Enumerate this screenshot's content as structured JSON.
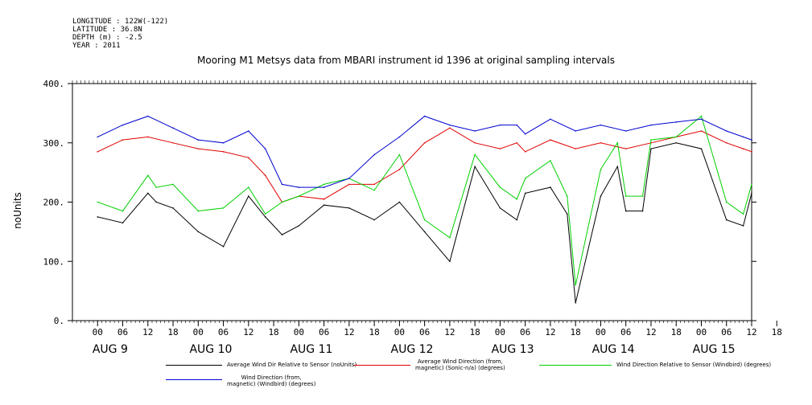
{
  "meta": {
    "lines": [
      "LONGITUDE : 122W(-122)",
      "LATITUDE : 36.8N",
      "DEPTH (m) : -2.5",
      "YEAR : 2011"
    ]
  },
  "chart_data": {
    "type": "line",
    "title": "Mooring M1 Metsys data from MBARI instrument id 1396 at original sampling intervals",
    "ylabel": "noUnits",
    "ylim": [
      0,
      400
    ],
    "yticks": [
      "0.",
      "100.",
      "200.",
      "300.",
      "400."
    ],
    "xlim_hours": [
      -6,
      156
    ],
    "hour_ticks": [
      "00",
      "06",
      "12",
      "18",
      "00",
      "06",
      "12",
      "18",
      "00",
      "06",
      "12",
      "18",
      "00",
      "06",
      "12",
      "18",
      "00",
      "06",
      "12",
      "18",
      "00",
      "06",
      "12",
      "18",
      "00",
      "06",
      "12",
      "18"
    ],
    "day_labels": [
      "AUG  9",
      "AUG 10",
      "AUG 11",
      "AUG 12",
      "AUG 13",
      "AUG 14",
      "AUG 15"
    ],
    "series": [
      {
        "name": "Average Wind Dir Relative to Sensor (noUnits)",
        "color": "#000000",
        "x": [
          0,
          6,
          12,
          14,
          18,
          24,
          30,
          36,
          40,
          44,
          48,
          54,
          60,
          66,
          72,
          78,
          84,
          90,
          96,
          100,
          102,
          108,
          112,
          114,
          120,
          124,
          126,
          130,
          132,
          138,
          144,
          150,
          154,
          156
        ],
        "y": [
          175,
          165,
          215,
          200,
          190,
          150,
          125,
          210,
          175,
          145,
          160,
          195,
          190,
          170,
          200,
          150,
          100,
          260,
          190,
          170,
          215,
          225,
          180,
          30,
          210,
          260,
          185,
          185,
          290,
          300,
          290,
          170,
          160,
          215
        ]
      },
      {
        "name": "Average Wind Direction (from, magnetic) (Sonic-n/a) (degrees)",
        "color": "#e00000",
        "x": [
          0,
          6,
          12,
          18,
          24,
          30,
          36,
          40,
          44,
          48,
          54,
          60,
          66,
          72,
          78,
          84,
          90,
          96,
          100,
          102,
          108,
          114,
          120,
          126,
          132,
          138,
          144,
          150,
          154,
          156
        ],
        "y": [
          285,
          305,
          310,
          300,
          290,
          285,
          275,
          245,
          200,
          210,
          205,
          230,
          230,
          255,
          300,
          325,
          300,
          290,
          300,
          285,
          305,
          290,
          300,
          290,
          300,
          310,
          320,
          300,
          290,
          285
        ]
      },
      {
        "name": "Wind Direction Relative to Sensor (Windbird) (degrees)",
        "color": "#00d000",
        "x": [
          0,
          6,
          12,
          14,
          18,
          24,
          30,
          36,
          40,
          44,
          48,
          54,
          60,
          66,
          72,
          78,
          84,
          90,
          96,
          100,
          102,
          108,
          112,
          114,
          120,
          124,
          126,
          130,
          132,
          138,
          144,
          150,
          154,
          156
        ],
        "y": [
          200,
          185,
          245,
          225,
          230,
          185,
          190,
          225,
          180,
          200,
          210,
          230,
          240,
          220,
          280,
          170,
          140,
          280,
          225,
          205,
          240,
          270,
          210,
          60,
          255,
          300,
          210,
          210,
          305,
          310,
          345,
          200,
          180,
          230
        ]
      },
      {
        "name": "Wind Direction (from, magnetic) (Windbird) (degrees)",
        "color": "#0000d0",
        "x": [
          0,
          6,
          12,
          18,
          24,
          30,
          36,
          40,
          44,
          48,
          54,
          60,
          66,
          72,
          78,
          84,
          90,
          96,
          100,
          102,
          108,
          114,
          120,
          126,
          132,
          138,
          144,
          150,
          154,
          156
        ],
        "y": [
          310,
          330,
          345,
          325,
          305,
          300,
          320,
          290,
          230,
          225,
          225,
          240,
          280,
          310,
          345,
          330,
          320,
          330,
          330,
          315,
          340,
          320,
          330,
          320,
          330,
          335,
          340,
          320,
          310,
          305
        ]
      }
    ]
  },
  "legend": [
    {
      "label_line1": "Average Wind Dir Relative to Sensor (noUnits)",
      "label_line2": "",
      "color": "#000000"
    },
    {
      "label_line1": "Average Wind Direction (from,",
      "label_line2": "magnetic) (Sonic-n/a) (degrees)",
      "color": "#e00000"
    },
    {
      "label_line1": "Wind Direction Relative to Sensor (Windbird) (degrees)",
      "label_line2": "",
      "color": "#00d000"
    },
    {
      "label_line1": "Wind Direction (from,",
      "label_line2": "magnetic) (Windbird) (degrees)",
      "color": "#0000d0"
    }
  ]
}
